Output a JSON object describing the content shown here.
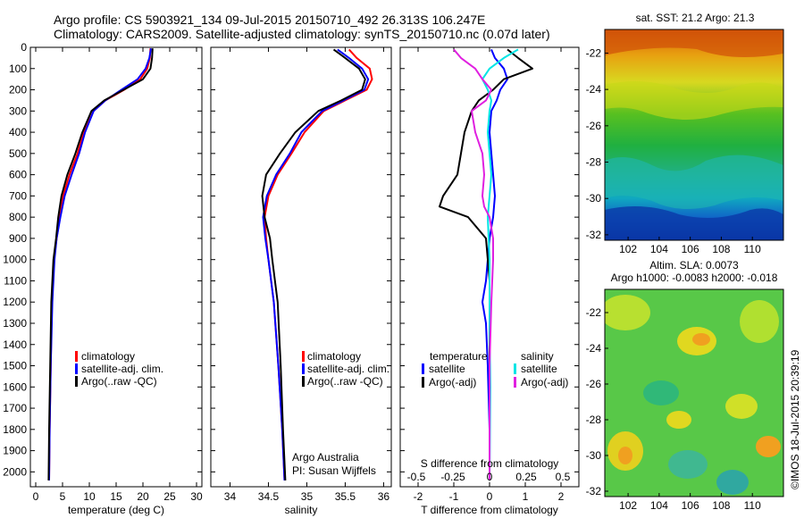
{
  "header": {
    "title_line1": "Argo profile: CS 5903921_134 09-Jul-2015 20150710_492 26.313S 106.247E",
    "title_line2": "Climatology: CARS2009. Satellite-adjusted climatology: synTS_20150710.nc (0.07d later)"
  },
  "map_sst": {
    "title": "sat. SST: 21.2 Argo: 21.3"
  },
  "map_sla": {
    "title_line1": "Altim. SLA: 0.0073",
    "title_line2": "Argo h1000: -0.0083 h2000: -0.018"
  },
  "footer": {
    "credit": "Argo Australia",
    "pi": "PI: Susan Wijffels",
    "timestamp": "©IMOS 18-Jul-2015 20:39:19"
  },
  "colors": {
    "climatology": "#ff0000",
    "satellite": "#0000ff",
    "argo": "#000000",
    "sal_satellite": "#00e5e5",
    "sal_argo": "#e020e0"
  },
  "chart_data": [
    {
      "type": "line",
      "id": "temperature",
      "xlabel": "temperature (deg C)",
      "xlim": [
        -1,
        31
      ],
      "ylim": [
        0,
        2070
      ],
      "xticks": [
        0,
        5,
        10,
        15,
        20,
        25,
        30
      ],
      "yticks": [
        0,
        100,
        200,
        300,
        400,
        500,
        600,
        700,
        800,
        900,
        1000,
        1100,
        1200,
        1300,
        1400,
        1500,
        1600,
        1700,
        1800,
        1900,
        2000
      ],
      "legend": [
        "climatology",
        "satellite-adj. clim.",
        "Argo(..raw -QC)"
      ],
      "legend_position": "lower-right",
      "series": [
        {
          "name": "climatology",
          "color": "#ff0000",
          "x": [
            21.4,
            21.3,
            20.8,
            19.5,
            16.5,
            13.0,
            10.8,
            9.0,
            7.8,
            6.3,
            5.1,
            4.5,
            3.9,
            3.4,
            3.0,
            2.8,
            2.6,
            2.5
          ],
          "y": [
            5,
            50,
            100,
            150,
            200,
            250,
            300,
            400,
            500,
            600,
            700,
            800,
            900,
            1000,
            1200,
            1500,
            1800,
            2040
          ]
        },
        {
          "name": "satellite-adj. clim.",
          "color": "#0000ff",
          "x": [
            21.5,
            21.2,
            20.5,
            19.0,
            16.0,
            13.0,
            10.8,
            9.2,
            8.1,
            6.7,
            5.4,
            4.6,
            3.9,
            3.5,
            3.1,
            2.8,
            2.6,
            2.5
          ],
          "y": [
            5,
            50,
            100,
            150,
            200,
            250,
            300,
            400,
            500,
            600,
            700,
            800,
            900,
            1000,
            1200,
            1500,
            1800,
            2040
          ]
        },
        {
          "name": "Argo(..raw -QC)",
          "color": "#000000",
          "x": [
            21.8,
            21.7,
            21.4,
            20.0,
            16.4,
            12.8,
            10.4,
            8.7,
            7.4,
            5.9,
            4.8,
            4.2,
            3.8,
            3.3,
            2.9,
            2.7,
            2.5,
            2.4
          ],
          "y": [
            5,
            50,
            100,
            150,
            200,
            250,
            300,
            400,
            500,
            600,
            700,
            800,
            900,
            1000,
            1200,
            1500,
            1800,
            2040
          ]
        }
      ]
    },
    {
      "type": "line",
      "id": "salinity",
      "xlabel": "salinity",
      "xlim": [
        33.75,
        36.1
      ],
      "ylim": [
        0,
        2070
      ],
      "xticks": [
        34,
        34.5,
        35,
        35.5,
        36
      ],
      "yticks": [],
      "legend": [
        "climatology",
        "satellite-adj. clim.",
        "Argo(..raw -QC)"
      ],
      "legend_position": "lower-right",
      "series": [
        {
          "name": "climatology",
          "color": "#ff0000",
          "x": [
            35.55,
            35.65,
            35.82,
            35.85,
            35.78,
            35.5,
            35.22,
            34.97,
            34.8,
            34.62,
            34.5,
            34.45,
            34.47,
            34.5,
            34.57,
            34.63,
            34.68,
            34.71
          ],
          "y": [
            10,
            50,
            100,
            150,
            200,
            250,
            300,
            400,
            500,
            600,
            700,
            800,
            900,
            1000,
            1200,
            1500,
            1800,
            2040
          ]
        },
        {
          "name": "satellite-adj. clim.",
          "color": "#0000ff",
          "x": [
            35.4,
            35.55,
            35.72,
            35.8,
            35.75,
            35.48,
            35.2,
            34.93,
            34.78,
            34.6,
            34.48,
            34.43,
            34.46,
            34.5,
            34.57,
            34.63,
            34.68,
            34.71
          ],
          "y": [
            10,
            50,
            100,
            150,
            200,
            250,
            300,
            400,
            500,
            600,
            700,
            800,
            900,
            1000,
            1200,
            1500,
            1800,
            2040
          ]
        },
        {
          "name": "Argo(..raw -QC)",
          "color": "#000000",
          "x": [
            35.35,
            35.5,
            35.68,
            35.76,
            35.72,
            35.45,
            35.15,
            34.85,
            34.65,
            34.47,
            34.42,
            34.45,
            34.52,
            34.55,
            34.62,
            34.66,
            34.69,
            34.72
          ],
          "y": [
            10,
            50,
            100,
            150,
            200,
            250,
            300,
            400,
            500,
            600,
            700,
            800,
            900,
            1000,
            1200,
            1500,
            1800,
            2040
          ]
        }
      ]
    },
    {
      "type": "line",
      "id": "difference",
      "xlabel": "T difference from climatology",
      "xlabel2": "S difference from climatology",
      "xlim": [
        -2.5,
        2.5
      ],
      "ylim": [
        0,
        2070
      ],
      "xticks": [
        -2,
        -1,
        0,
        1,
        2
      ],
      "xticks_s": [
        -0.5,
        -0.25,
        0,
        0.25,
        0.5
      ],
      "xticks_s_labels": [
        "-0.5",
        "-0.25",
        "0",
        "0.25",
        "0.5"
      ],
      "legend_title_t": "temperature",
      "legend_title_s": "salinity",
      "legend": [
        "satellite",
        "Argo(-adj)",
        "satellite",
        "Argo(-adj)"
      ],
      "legend_position": "bottom",
      "series": [
        {
          "name": "satellite",
          "color": "#0000ff",
          "x": [
            0.05,
            0.15,
            0.4,
            0.5,
            0.3,
            0.2,
            0.05,
            0.0,
            0.05,
            0.1,
            0.15,
            0.1,
            0.0,
            -0.05,
            -0.1,
            -0.2,
            -0.1,
            -0.05,
            0.0,
            0.0
          ],
          "y": [
            10,
            50,
            100,
            150,
            200,
            250,
            300,
            400,
            500,
            600,
            700,
            800,
            900,
            1000,
            1100,
            1200,
            1300,
            1500,
            1800,
            2040
          ]
        },
        {
          "name": "Argo(-adj)",
          "color": "#000000",
          "x": [
            0.5,
            0.8,
            1.2,
            0.4,
            0.1,
            -0.3,
            -0.5,
            -0.7,
            -0.8,
            -0.9,
            -1.3,
            -1.4,
            -0.6,
            -0.1,
            -0.05,
            0.0,
            0.0,
            0.0,
            0.0,
            0.0
          ],
          "y": [
            10,
            50,
            100,
            150,
            200,
            250,
            300,
            400,
            500,
            600,
            700,
            750,
            800,
            900,
            1000,
            1100,
            1200,
            1500,
            1800,
            2040
          ]
        },
        {
          "name": "satellite",
          "color": "#00e5e5",
          "x": [
            0.8,
            0.4,
            0.0,
            -0.2,
            -0.05,
            0.05,
            0.0,
            -0.05,
            0.0,
            0.05,
            0.0,
            -0.05,
            0.0,
            0.0,
            0.02,
            0.0
          ],
          "y": [
            10,
            50,
            100,
            150,
            200,
            250,
            300,
            400,
            500,
            600,
            700,
            800,
            1000,
            1300,
            1600,
            2040
          ]
        },
        {
          "name": "Argo(-adj)",
          "color": "#e020e0",
          "x": [
            -1.0,
            -0.8,
            -0.4,
            -0.2,
            0.05,
            -0.1,
            -0.5,
            -0.4,
            -0.2,
            -0.15,
            -0.2,
            -0.15,
            0.0,
            0.1,
            0.1,
            0.05,
            0.0,
            0.0
          ],
          "y": [
            10,
            50,
            100,
            150,
            200,
            250,
            300,
            400,
            500,
            600,
            700,
            750,
            800,
            900,
            1000,
            1200,
            1500,
            2040
          ]
        }
      ]
    },
    {
      "type": "heatmap",
      "id": "sst_map",
      "xlim": [
        100.5,
        112
      ],
      "ylim": [
        -32.3,
        -20.7
      ],
      "xticks": [
        102,
        104,
        106,
        108,
        110
      ],
      "yticks": [
        -22,
        -24,
        -26,
        -28,
        -30,
        -32
      ]
    },
    {
      "type": "heatmap",
      "id": "sla_map",
      "xlim": [
        100.5,
        112
      ],
      "ylim": [
        -32.3,
        -20.7
      ],
      "xticks": [
        102,
        104,
        106,
        108,
        110
      ],
      "yticks": [
        -22,
        -24,
        -26,
        -28,
        -30,
        -32
      ]
    }
  ]
}
